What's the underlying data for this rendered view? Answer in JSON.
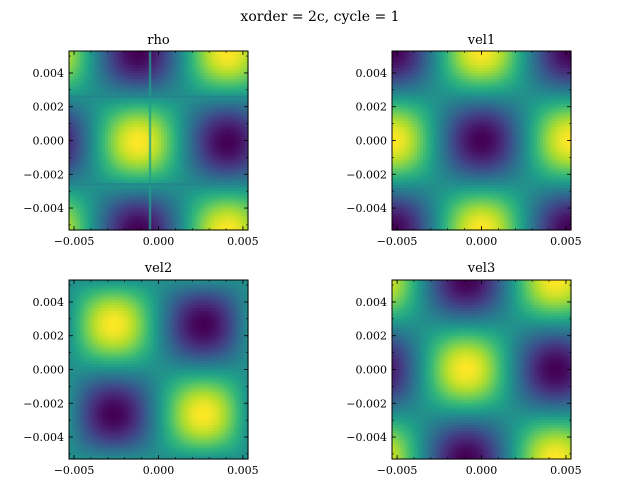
{
  "figure": {
    "suptitle": "xorder = 2c, cycle = 1"
  },
  "chart_data": [
    {
      "type": "heatmap",
      "title": "rho",
      "field": "rho",
      "xlim": [
        -0.0053,
        0.0053
      ],
      "ylim": [
        -0.0053,
        0.0053
      ],
      "xticks": [
        -0.005,
        0.0,
        0.005
      ],
      "xticklabels": [
        "−0.005",
        "0.000",
        "0.005"
      ],
      "yticks": [
        -0.004,
        -0.002,
        0.0,
        0.002,
        0.004
      ],
      "yticklabels": [
        "−0.004",
        "−0.002",
        "0.000",
        "0.002",
        "0.004"
      ],
      "colormap": "viridis",
      "artifact_lines_x": [
        -0.0005
      ],
      "artifact_lines_y": [
        0.0026,
        -0.0026
      ]
    },
    {
      "type": "heatmap",
      "title": "vel1",
      "field": "vel1",
      "xlim": [
        -0.0053,
        0.0053
      ],
      "ylim": [
        -0.0053,
        0.0053
      ],
      "xticks": [
        -0.005,
        0.0,
        0.005
      ],
      "xticklabels": [
        "−0.005",
        "0.000",
        "0.005"
      ],
      "yticks": [
        -0.004,
        -0.002,
        0.0,
        0.002,
        0.004
      ],
      "yticklabels": [
        "−0.004",
        "−0.002",
        "0.000",
        "0.002",
        "0.004"
      ],
      "colormap": "viridis"
    },
    {
      "type": "heatmap",
      "title": "vel2",
      "field": "vel2",
      "xlim": [
        -0.0053,
        0.0053
      ],
      "ylim": [
        -0.0053,
        0.0053
      ],
      "xticks": [
        -0.005,
        0.0,
        0.005
      ],
      "xticklabels": [
        "−0.005",
        "0.000",
        "0.005"
      ],
      "yticks": [
        -0.004,
        -0.002,
        0.0,
        0.002,
        0.004
      ],
      "yticklabels": [
        "−0.004",
        "−0.002",
        "0.000",
        "0.002",
        "0.004"
      ],
      "colormap": "viridis"
    },
    {
      "type": "heatmap",
      "title": "vel3",
      "field": "vel3",
      "xlim": [
        -0.0053,
        0.0053
      ],
      "ylim": [
        -0.0053,
        0.0053
      ],
      "xticks": [
        -0.005,
        0.0,
        0.005
      ],
      "xticklabels": [
        "−0.005",
        "0.000",
        "0.005"
      ],
      "yticks": [
        -0.004,
        -0.002,
        0.0,
        0.002,
        0.004
      ],
      "yticklabels": [
        "−0.004",
        "−0.002",
        "0.000",
        "0.002",
        "0.004"
      ],
      "colormap": "viridis"
    }
  ]
}
